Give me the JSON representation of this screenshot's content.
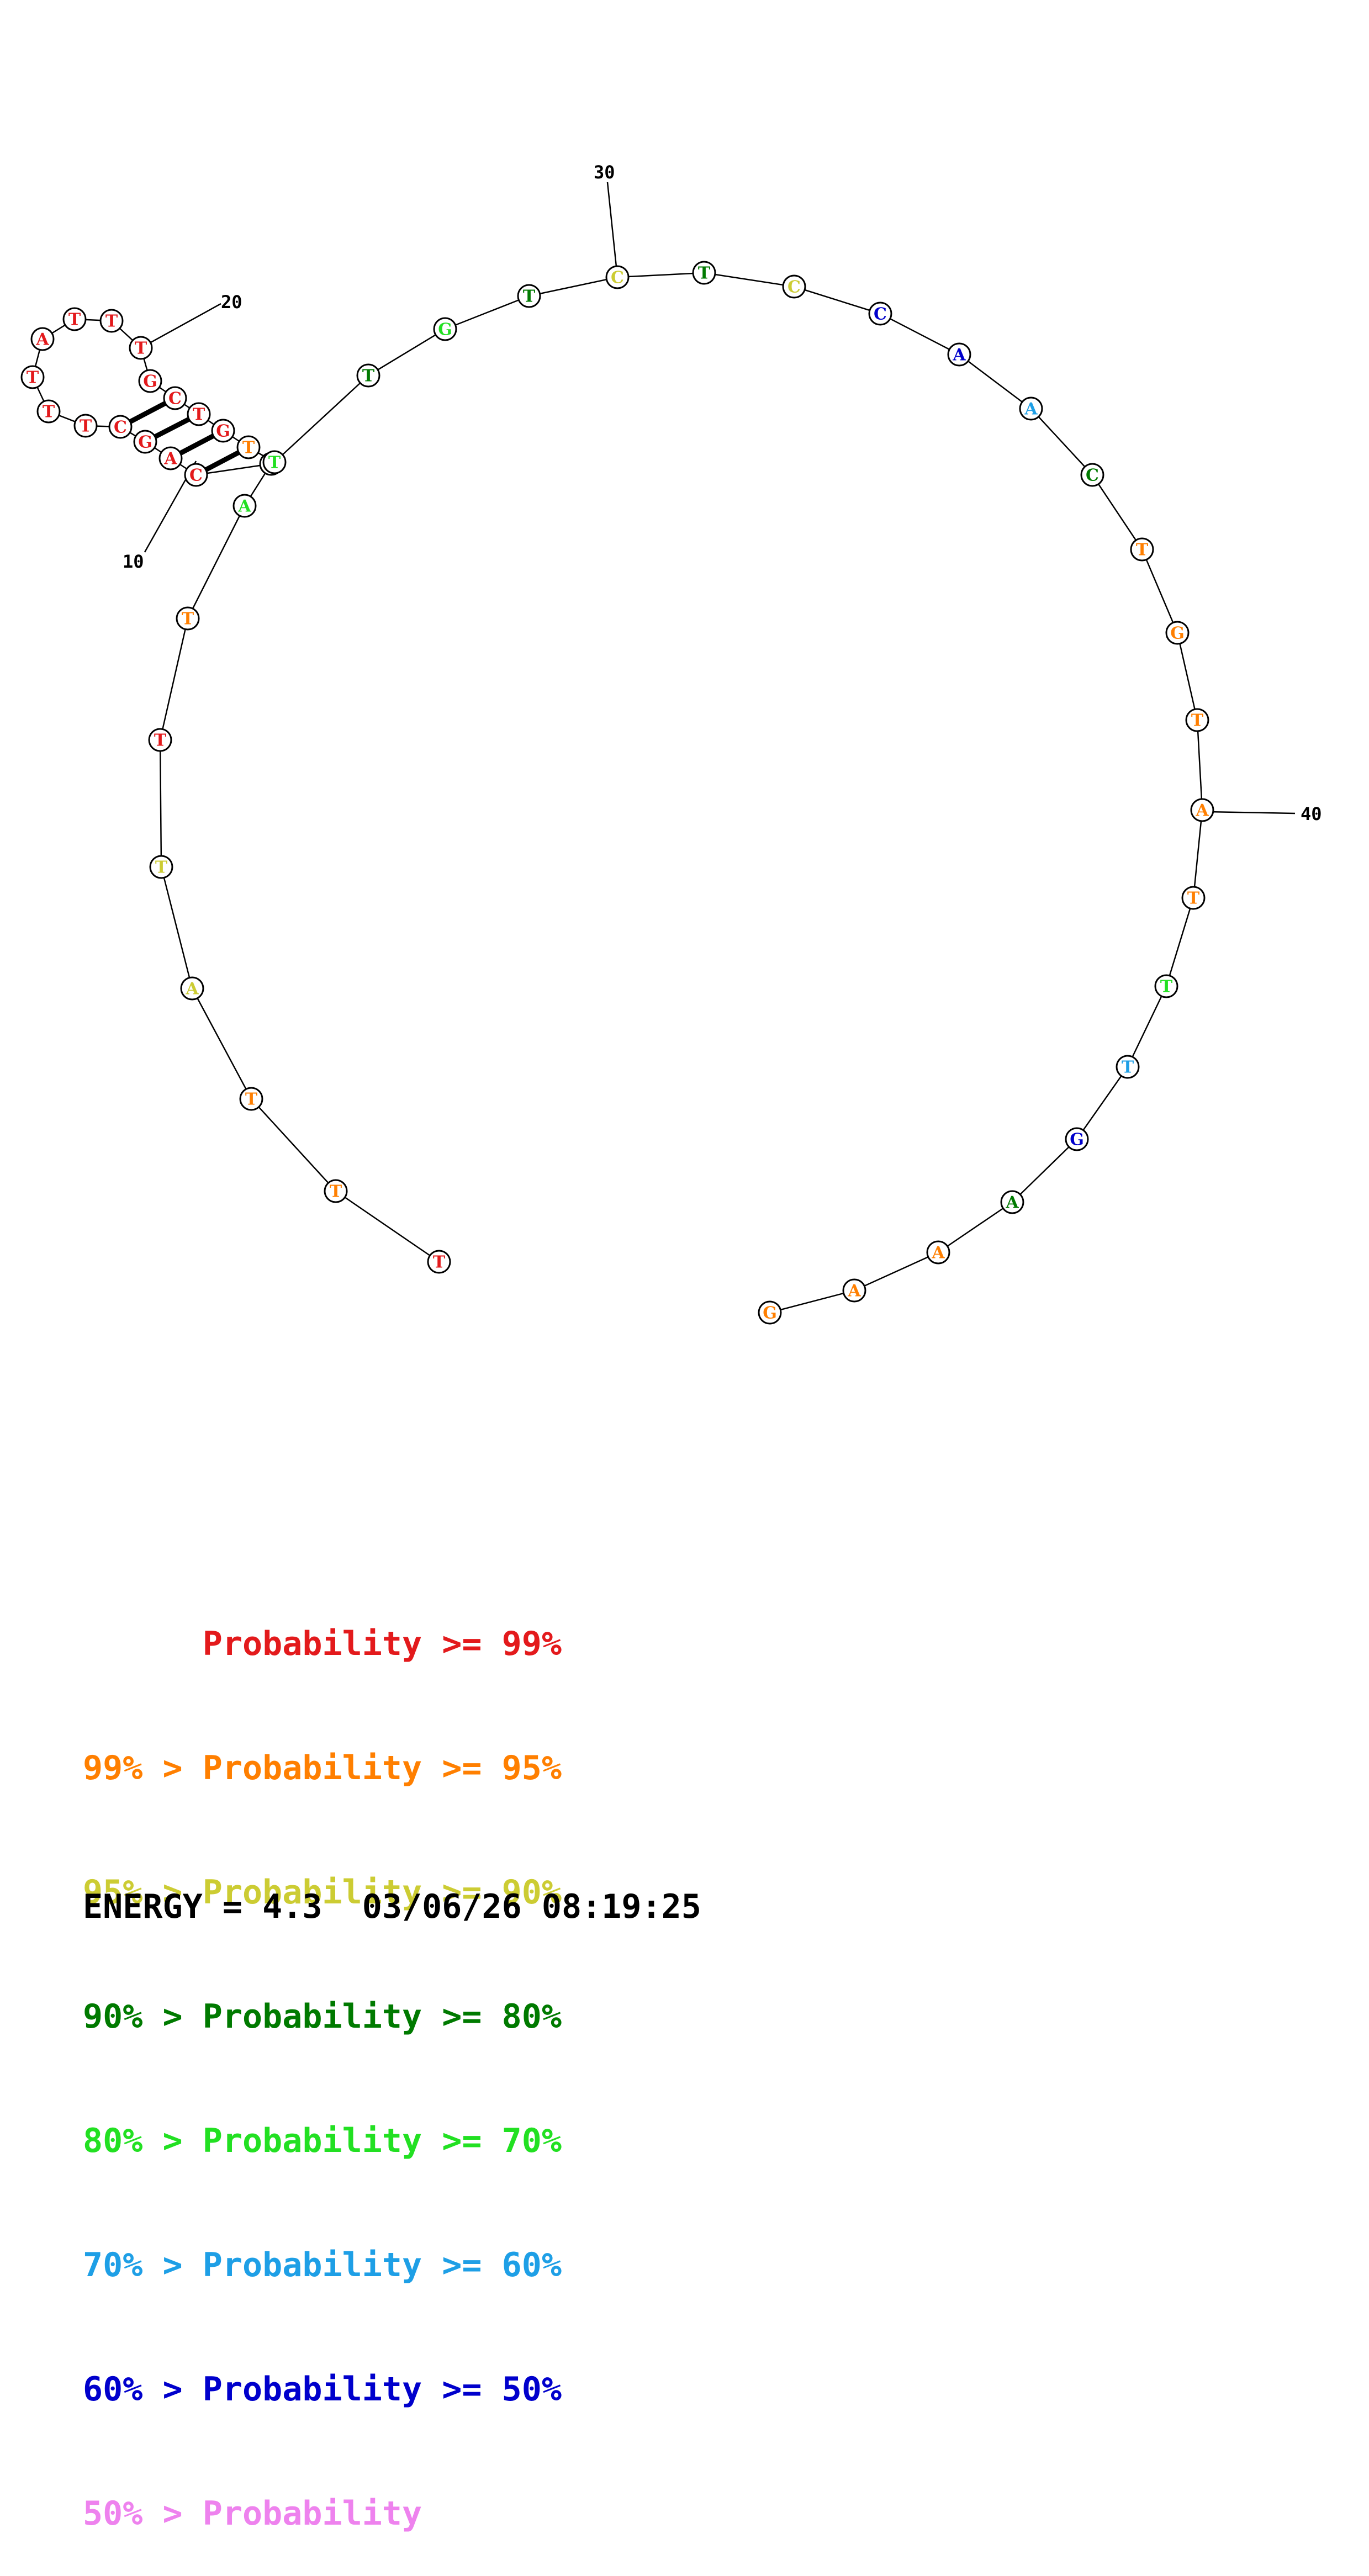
{
  "colors": {
    "p99": "#e31a1c",
    "p95": "#ff7f00",
    "p90": "#cccc33",
    "p80": "#007a00",
    "p70": "#22e022",
    "p60": "#1e9fe6",
    "p50": "#0000cc",
    "plow": "#ee82ee"
  },
  "structure": {
    "nucleotides": [
      {
        "n": 1,
        "base": "T",
        "prob": "p99"
      },
      {
        "n": 2,
        "base": "T",
        "prob": "p95"
      },
      {
        "n": 3,
        "base": "T",
        "prob": "p95"
      },
      {
        "n": 4,
        "base": "A",
        "prob": "p90"
      },
      {
        "n": 5,
        "base": "T",
        "prob": "p90"
      },
      {
        "n": 6,
        "base": "T",
        "prob": "p99"
      },
      {
        "n": 7,
        "base": "T",
        "prob": "p95"
      },
      {
        "n": 8,
        "base": "A",
        "prob": "p70"
      },
      {
        "n": 9,
        "base": "A",
        "prob": "p95"
      },
      {
        "n": 10,
        "base": "C",
        "prob": "p99"
      },
      {
        "n": 11,
        "base": "A",
        "prob": "p99"
      },
      {
        "n": 12,
        "base": "G",
        "prob": "p99"
      },
      {
        "n": 13,
        "base": "C",
        "prob": "p99"
      },
      {
        "n": 14,
        "base": "T",
        "prob": "p99"
      },
      {
        "n": 15,
        "base": "T",
        "prob": "p99"
      },
      {
        "n": 16,
        "base": "T",
        "prob": "p99"
      },
      {
        "n": 17,
        "base": "A",
        "prob": "p99"
      },
      {
        "n": 18,
        "base": "T",
        "prob": "p99"
      },
      {
        "n": 19,
        "base": "T",
        "prob": "p99"
      },
      {
        "n": 20,
        "base": "T",
        "prob": "p99"
      },
      {
        "n": 21,
        "base": "G",
        "prob": "p99"
      },
      {
        "n": 22,
        "base": "C",
        "prob": "p99"
      },
      {
        "n": 23,
        "base": "T",
        "prob": "p99"
      },
      {
        "n": 24,
        "base": "G",
        "prob": "p99"
      },
      {
        "n": 25,
        "base": "T",
        "prob": "p95"
      },
      {
        "n": 26,
        "base": "T",
        "prob": "p70"
      },
      {
        "n": 27,
        "base": "T",
        "prob": "p80"
      },
      {
        "n": 28,
        "base": "G",
        "prob": "p70"
      },
      {
        "n": 29,
        "base": "T",
        "prob": "p80"
      },
      {
        "n": 30,
        "base": "C",
        "prob": "p90"
      },
      {
        "n": 31,
        "base": "T",
        "prob": "p80"
      },
      {
        "n": 32,
        "base": "C",
        "prob": "p90"
      },
      {
        "n": 33,
        "base": "C",
        "prob": "p50"
      },
      {
        "n": 34,
        "base": "A",
        "prob": "p50"
      },
      {
        "n": 35,
        "base": "A",
        "prob": "p60"
      },
      {
        "n": 36,
        "base": "C",
        "prob": "p80"
      },
      {
        "n": 37,
        "base": "T",
        "prob": "p95"
      },
      {
        "n": 38,
        "base": "G",
        "prob": "p95"
      },
      {
        "n": 39,
        "base": "T",
        "prob": "p95"
      },
      {
        "n": 40,
        "base": "A",
        "prob": "p95"
      },
      {
        "n": 41,
        "base": "T",
        "prob": "p95"
      },
      {
        "n": 42,
        "base": "T",
        "prob": "p70"
      },
      {
        "n": 43,
        "base": "T",
        "prob": "p60"
      },
      {
        "n": 44,
        "base": "G",
        "prob": "p50"
      },
      {
        "n": 45,
        "base": "A",
        "prob": "p80"
      },
      {
        "n": 46,
        "base": "A",
        "prob": "p95"
      },
      {
        "n": 47,
        "base": "A",
        "prob": "p95"
      },
      {
        "n": 48,
        "base": "G",
        "prob": "p95"
      }
    ],
    "pairs": [
      [
        9,
        26
      ],
      [
        10,
        25
      ],
      [
        11,
        24
      ],
      [
        12,
        23
      ],
      [
        13,
        22
      ]
    ],
    "tick_labels": [
      "10",
      "20",
      "30",
      "40"
    ]
  },
  "legend": [
    {
      "text": "      Probability >= 99%",
      "color_key": "p99"
    },
    {
      "text": "99% > Probability >= 95%",
      "color_key": "p95"
    },
    {
      "text": "95% > Probability >= 90%",
      "color_key": "p90"
    },
    {
      "text": "90% > Probability >= 80%",
      "color_key": "p80"
    },
    {
      "text": "80% > Probability >= 70%",
      "color_key": "p70"
    },
    {
      "text": "70% > Probability >= 60%",
      "color_key": "p60"
    },
    {
      "text": "60% > Probability >= 50%",
      "color_key": "p50"
    },
    {
      "text": "50% > Probability",
      "color_key": "plow"
    }
  ],
  "footer": {
    "energy": "ENERGY = 4.3  03/06/26 08:19:25"
  }
}
